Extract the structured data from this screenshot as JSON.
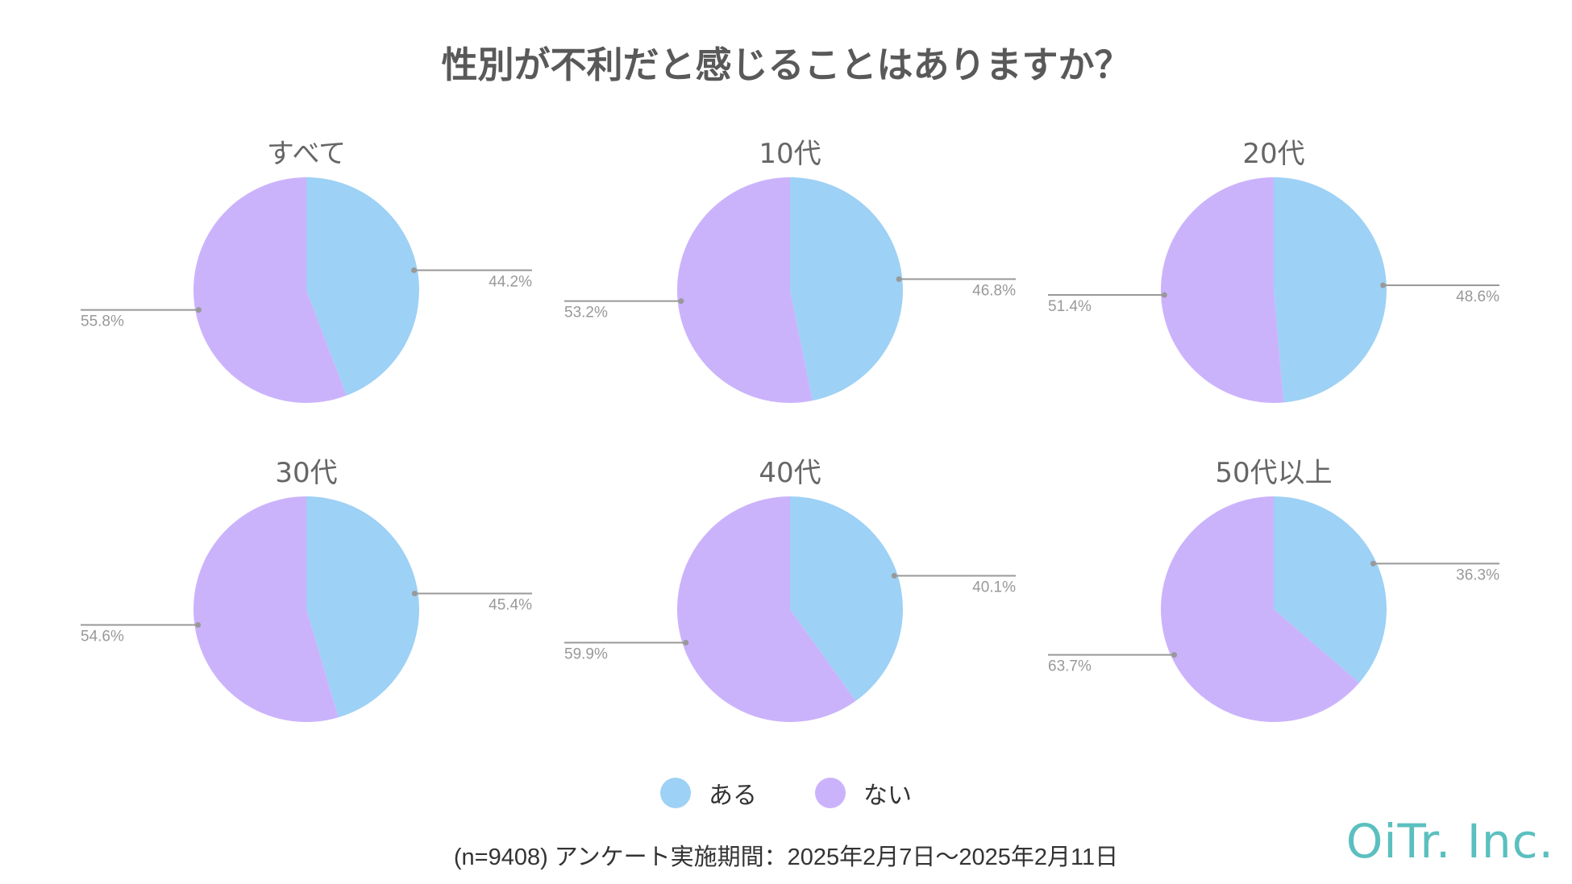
{
  "title": "性別が不利だと感じることはありますか？",
  "chart_data": [
    {
      "type": "pie",
      "title": "すべて",
      "categories": [
        "ある",
        "ない"
      ],
      "values": [
        44.2,
        55.8
      ],
      "labels": [
        "44.2%",
        "55.8%"
      ]
    },
    {
      "type": "pie",
      "title": "10代",
      "categories": [
        "ある",
        "ない"
      ],
      "values": [
        46.8,
        53.2
      ],
      "labels": [
        "46.8%",
        "53.2%"
      ]
    },
    {
      "type": "pie",
      "title": "20代",
      "categories": [
        "ある",
        "ない"
      ],
      "values": [
        48.6,
        51.4
      ],
      "labels": [
        "48.6%",
        "51.4%"
      ]
    },
    {
      "type": "pie",
      "title": "30代",
      "categories": [
        "ある",
        "ない"
      ],
      "values": [
        45.4,
        54.6
      ],
      "labels": [
        "45.4%",
        "54.6%"
      ]
    },
    {
      "type": "pie",
      "title": "40代",
      "categories": [
        "ある",
        "ない"
      ],
      "values": [
        40.1,
        59.9
      ],
      "labels": [
        "40.1%",
        "59.9%"
      ]
    },
    {
      "type": "pie",
      "title": "50代以上",
      "categories": [
        "ある",
        "ない"
      ],
      "values": [
        36.3,
        63.7
      ],
      "labels": [
        "36.3%",
        "63.7%"
      ]
    }
  ],
  "legend": [
    {
      "label": "ある",
      "color": "#9dd1f5"
    },
    {
      "label": "ない",
      "color": "#cbb3fc"
    }
  ],
  "footnote": "(n=9408)  アンケート実施期間：2025年2月7日～2025年2月11日",
  "logo": "OiTr. Inc."
}
